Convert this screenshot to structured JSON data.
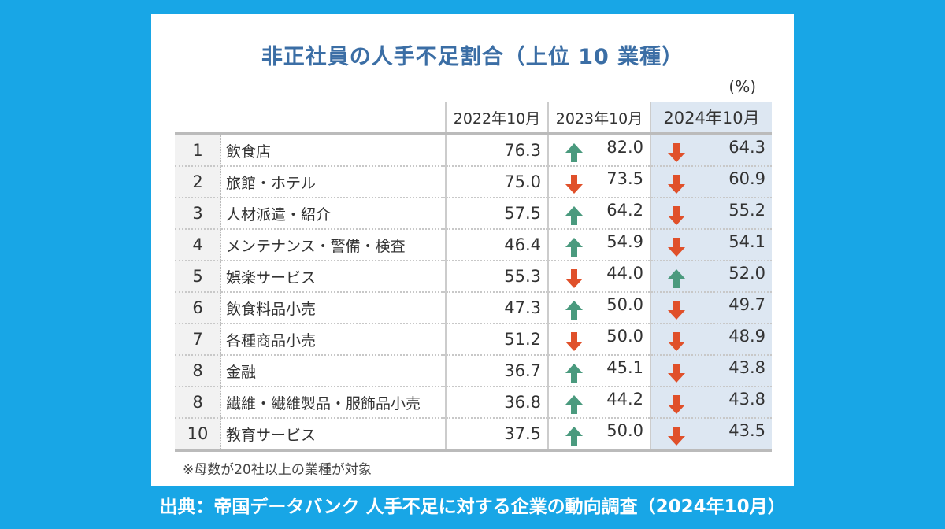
{
  "title": "非正社員の人手不足割合（上位 10 業種）",
  "footer": "出典：帝国データバンク 人手不足に対する企業の動向調査（2024年10月）",
  "colors": {
    "background": "#18a6e6",
    "title": "#3b6ea5",
    "up_arrow": "#4a9a7e",
    "down_arrow": "#e0502a",
    "highlight_column": "#dde7f2"
  },
  "chart_data": {
    "type": "table",
    "title": "非正社員の人手不足割合（上位 10 業種）",
    "unit": "(%)",
    "columns": [
      "2022年10月",
      "2023年10月",
      "2024年10月"
    ],
    "rows": [
      {
        "rank": "1",
        "name": "飲食店",
        "values": [
          "76.3",
          "82.0",
          "64.3"
        ],
        "trend": [
          "",
          "up",
          "down"
        ]
      },
      {
        "rank": "2",
        "name": "旅館・ホテル",
        "values": [
          "75.0",
          "73.5",
          "60.9"
        ],
        "trend": [
          "",
          "down",
          "down"
        ]
      },
      {
        "rank": "3",
        "name": "人材派遣・紹介",
        "values": [
          "57.5",
          "64.2",
          "55.2"
        ],
        "trend": [
          "",
          "up",
          "down"
        ]
      },
      {
        "rank": "4",
        "name": "メンテナンス・警備・検査",
        "values": [
          "46.4",
          "54.9",
          "54.1"
        ],
        "trend": [
          "",
          "up",
          "down"
        ]
      },
      {
        "rank": "5",
        "name": "娯楽サービス",
        "values": [
          "55.3",
          "44.0",
          "52.0"
        ],
        "trend": [
          "",
          "down",
          "up"
        ]
      },
      {
        "rank": "6",
        "name": "飲食料品小売",
        "values": [
          "47.3",
          "50.0",
          "49.7"
        ],
        "trend": [
          "",
          "up",
          "down"
        ]
      },
      {
        "rank": "7",
        "name": "各種商品小売",
        "values": [
          "51.2",
          "50.0",
          "48.9"
        ],
        "trend": [
          "",
          "down",
          "down"
        ]
      },
      {
        "rank": "8",
        "name": "金融",
        "values": [
          "36.7",
          "45.1",
          "43.8"
        ],
        "trend": [
          "",
          "up",
          "down"
        ]
      },
      {
        "rank": "8",
        "name": "繊維・繊維製品・服飾品小売",
        "values": [
          "36.8",
          "44.2",
          "43.8"
        ],
        "trend": [
          "",
          "up",
          "down"
        ]
      },
      {
        "rank": "10",
        "name": "教育サービス",
        "values": [
          "37.5",
          "50.0",
          "43.5"
        ],
        "trend": [
          "",
          "up",
          "down"
        ]
      }
    ],
    "note": "※母数が20社以上の業種が対象"
  }
}
